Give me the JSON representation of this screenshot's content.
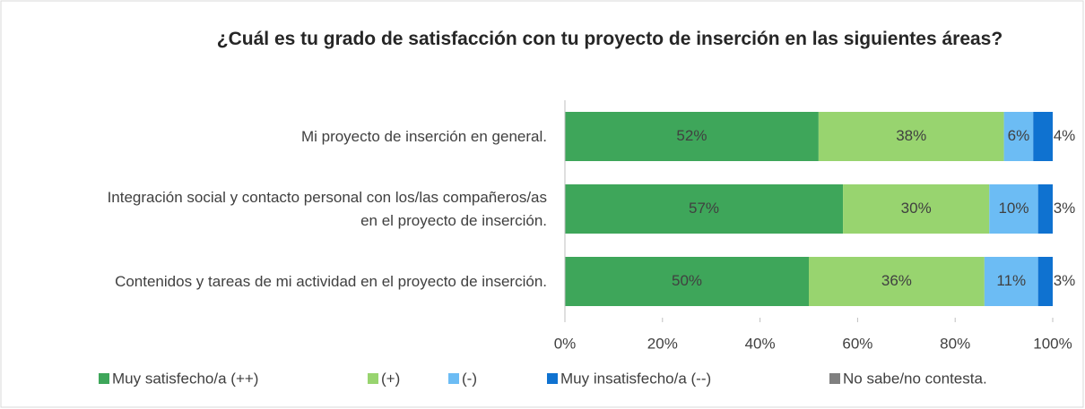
{
  "chart_data": {
    "type": "stacked_barh",
    "title": "¿Cuál es tu grado de satisfacción con tu proyecto de inserción en las siguientes áreas?",
    "categories": [
      "Mi proyecto de inserción en general.",
      "Integración social y contacto personal con los/las compañeros/as en el proyecto de inserción.",
      "Contenidos y tareas de mi actividad en el proyecto de inserción."
    ],
    "series": [
      {
        "name": "Muy satisfecho/a (++)",
        "color": "#3ea65a",
        "values": [
          52,
          57,
          50
        ],
        "value_labels": [
          "52%",
          "57%",
          "50%"
        ]
      },
      {
        "name": "(+)",
        "color": "#98d46f",
        "values": [
          38,
          30,
          36
        ],
        "value_labels": [
          "38%",
          "30%",
          "36%"
        ]
      },
      {
        "name": "(-)",
        "color": "#6cbcf4",
        "values": [
          6,
          10,
          11
        ],
        "value_labels": [
          "6%",
          "10%",
          "11%"
        ]
      },
      {
        "name": "Muy insatisfecho/a (--)",
        "color": "#0f72d0",
        "values": [
          4,
          3,
          3
        ],
        "value_labels": [
          "4%",
          "3%",
          "3%"
        ]
      },
      {
        "name": "No sabe/no contesta.",
        "color": "#808080",
        "values": [
          0,
          0,
          0
        ]
      }
    ],
    "xlim": [
      0,
      100
    ],
    "xticks": [
      {
        "value": 0,
        "label": "0%"
      },
      {
        "value": 20,
        "label": "20%"
      },
      {
        "value": 40,
        "label": "40%"
      },
      {
        "value": 60,
        "label": "60%"
      },
      {
        "value": 80,
        "label": "80%"
      },
      {
        "value": 100,
        "label": "100%"
      }
    ],
    "legend": "bottom"
  }
}
